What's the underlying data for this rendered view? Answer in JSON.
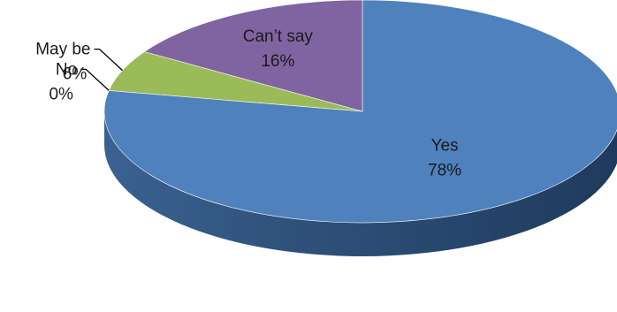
{
  "chart_data": {
    "type": "pie",
    "style": "3d",
    "title": "",
    "legend": "none",
    "slices": [
      {
        "label": "Yes",
        "value": 78,
        "display": "78%",
        "color": "#4F81BD"
      },
      {
        "label": "No",
        "value": 0,
        "display": "0%",
        "color": "#C0504D"
      },
      {
        "label": "May be",
        "value": 6,
        "display": "6%",
        "color": "#9BBB59"
      },
      {
        "label": "Can’t say",
        "value": 16,
        "display": "16%",
        "color": "#8064A2"
      }
    ]
  }
}
